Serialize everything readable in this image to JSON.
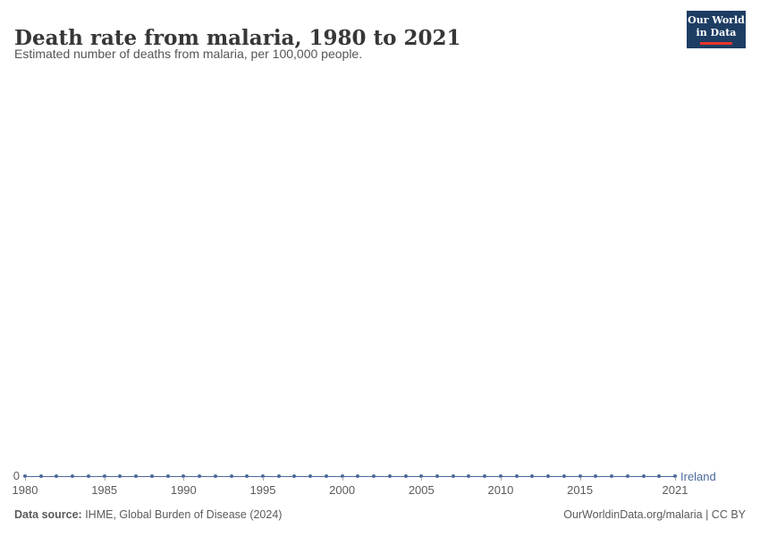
{
  "header": {
    "title": "Death rate from malaria, 1980 to 2021",
    "subtitle": "Estimated number of deaths from malaria, per 100,000 people.",
    "logo": {
      "line1": "Our World",
      "line2": "in Data",
      "bg_color": "#1d3d63",
      "accent_color": "#e8352c"
    }
  },
  "chart_data": {
    "type": "line",
    "title": "Death rate from malaria, 1980 to 2021",
    "subtitle": "Estimated number of deaths from malaria, per 100,000 people.",
    "xlabel": "",
    "ylabel": "",
    "xlim": [
      1980,
      2021
    ],
    "ylim": [
      0,
      0
    ],
    "grid": false,
    "legend_position": "right-of-line-end",
    "x_ticks": [
      1980,
      1985,
      1990,
      1995,
      2000,
      2005,
      2010,
      2015,
      2021
    ],
    "y_axis": {
      "zero_label": "0"
    },
    "series": [
      {
        "name": "Ireland",
        "color": "#4C6A9C",
        "x": [
          1980,
          1981,
          1982,
          1983,
          1984,
          1985,
          1986,
          1987,
          1988,
          1989,
          1990,
          1991,
          1992,
          1993,
          1994,
          1995,
          1996,
          1997,
          1998,
          1999,
          2000,
          2001,
          2002,
          2003,
          2004,
          2005,
          2006,
          2007,
          2008,
          2009,
          2010,
          2011,
          2012,
          2013,
          2014,
          2015,
          2016,
          2017,
          2018,
          2019,
          2020,
          2021
        ],
        "values": [
          0,
          0,
          0,
          0,
          0,
          0,
          0,
          0,
          0,
          0,
          0,
          0,
          0,
          0,
          0,
          0,
          0,
          0,
          0,
          0,
          0,
          0,
          0,
          0,
          0,
          0,
          0,
          0,
          0,
          0,
          0,
          0,
          0,
          0,
          0,
          0,
          0,
          0,
          0,
          0,
          0,
          0
        ]
      }
    ]
  },
  "footer": {
    "source_label": "Data source:",
    "source_text": " IHME, Global Burden of Disease (2024)",
    "citation": "OurWorldinData.org/malaria | CC BY"
  }
}
